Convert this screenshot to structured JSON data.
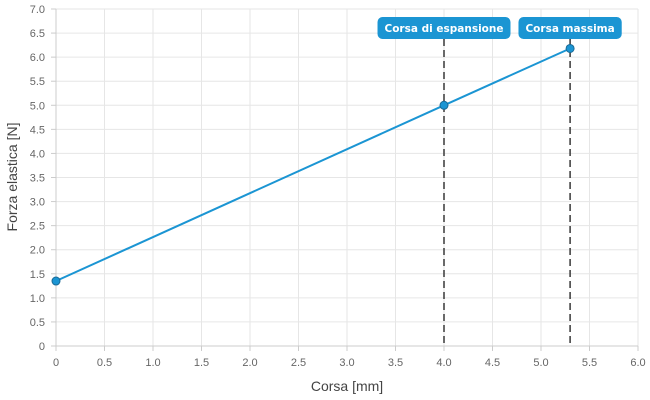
{
  "chart_data": {
    "type": "line",
    "xlabel": "Corsa [mm]",
    "ylabel": "Forza elastica [N]",
    "xlim": [
      0,
      6.0
    ],
    "ylim": [
      0,
      7.0
    ],
    "x_ticks": [
      "0",
      "0.5",
      "1.0",
      "1.5",
      "2.0",
      "2.5",
      "3.0",
      "3.5",
      "4.0",
      "4.5",
      "5.0",
      "5.5",
      "6.0"
    ],
    "y_ticks": [
      "0",
      "0.5",
      "1.0",
      "1.5",
      "2.0",
      "2.5",
      "3.0",
      "3.5",
      "4.0",
      "4.5",
      "5.0",
      "5.5",
      "6.0",
      "6.5",
      "7.0"
    ],
    "grid": true,
    "legend": "none",
    "series": [
      {
        "color": "#1b95d3",
        "x": [
          0,
          4.0,
          5.3
        ],
        "y": [
          1.35,
          5.0,
          6.18
        ]
      }
    ],
    "annotations": [
      {
        "label": "Corsa di espansione",
        "x": 4.0,
        "color": "#1b95d3"
      },
      {
        "label": "Corsa massima",
        "x": 5.3,
        "color": "#1b95d3"
      }
    ]
  }
}
